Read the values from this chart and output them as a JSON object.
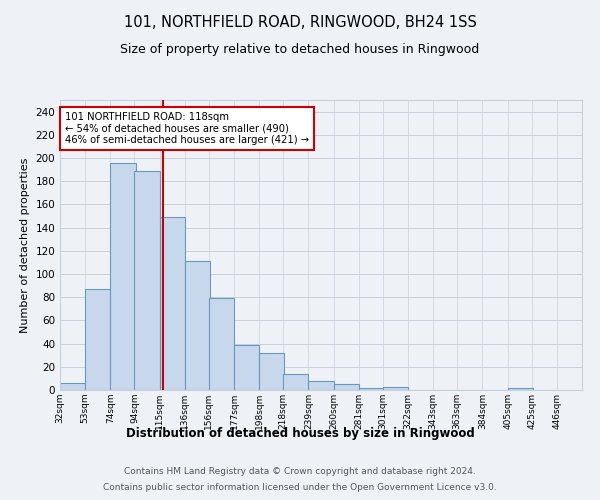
{
  "title": "101, NORTHFIELD ROAD, RINGWOOD, BH24 1SS",
  "subtitle": "Size of property relative to detached houses in Ringwood",
  "xlabel": "Distribution of detached houses by size in Ringwood",
  "ylabel": "Number of detached properties",
  "bar_left_edges": [
    32,
    53,
    74,
    94,
    115,
    136,
    156,
    177,
    198,
    218,
    239,
    260,
    281,
    301,
    322,
    343,
    363,
    384,
    405,
    425
  ],
  "bar_heights": [
    6,
    87,
    196,
    189,
    149,
    111,
    79,
    39,
    32,
    14,
    8,
    5,
    2,
    3,
    0,
    0,
    0,
    0,
    2,
    0
  ],
  "bar_widths": [
    21,
    21,
    21,
    21,
    21,
    21,
    21,
    21,
    21,
    21,
    21,
    21,
    21,
    21,
    21,
    21,
    21,
    21,
    21,
    21
  ],
  "bar_color": "#c8d8ec",
  "bar_edge_color": "#6699bb",
  "subject_line_x": 118,
  "subject_line_color": "#cc0000",
  "annotation_line1": "101 NORTHFIELD ROAD: 118sqm",
  "annotation_line2": "← 54% of detached houses are smaller (490)",
  "annotation_line3": "46% of semi-detached houses are larger (421) →",
  "annotation_box_facecolor": "white",
  "annotation_box_edgecolor": "#cc0000",
  "ylim": [
    0,
    250
  ],
  "yticks": [
    0,
    20,
    40,
    60,
    80,
    100,
    120,
    140,
    160,
    180,
    200,
    220,
    240
  ],
  "x_tick_labels": [
    "32sqm",
    "53sqm",
    "74sqm",
    "94sqm",
    "115sqm",
    "136sqm",
    "156sqm",
    "177sqm",
    "198sqm",
    "218sqm",
    "239sqm",
    "260sqm",
    "281sqm",
    "301sqm",
    "322sqm",
    "343sqm",
    "363sqm",
    "384sqm",
    "405sqm",
    "425sqm",
    "446sqm"
  ],
  "x_tick_positions": [
    32,
    53,
    74,
    94,
    115,
    136,
    156,
    177,
    198,
    218,
    239,
    260,
    281,
    301,
    322,
    343,
    363,
    384,
    405,
    425,
    446
  ],
  "footer_line1": "Contains HM Land Registry data © Crown copyright and database right 2024.",
  "footer_line2": "Contains public sector information licensed under the Open Government Licence v3.0.",
  "fig_bg_color": "#eef2f7",
  "plot_bg_color": "#eef2f7",
  "grid_color": "#c8d0dc"
}
